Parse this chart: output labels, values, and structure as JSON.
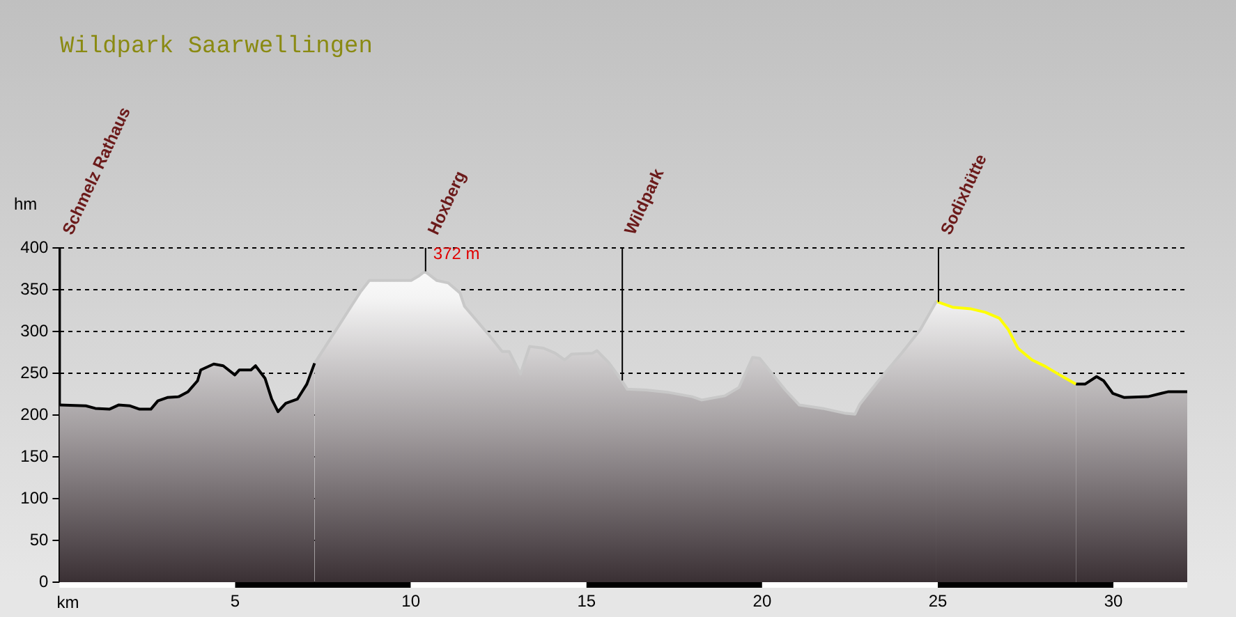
{
  "chart_data": {
    "type": "area",
    "title": "Wildpark Saarwellingen",
    "xlabel": "km",
    "ylabel": "hm",
    "xlim": [
      0,
      32.1
    ],
    "xticks": [
      5,
      10,
      15,
      20,
      25,
      30
    ],
    "ylim": [
      0,
      400
    ],
    "yticks": [
      0,
      50,
      100,
      150,
      200,
      250,
      300,
      350,
      400
    ],
    "grid": "y",
    "legend": false,
    "series": [
      {
        "color": "#000000",
        "x": [
          0,
          0.75,
          1.02,
          1.42,
          1.68,
          2.01,
          2.28,
          2.6,
          2.8,
          3.07,
          3.4,
          3.66,
          3.93,
          4.02,
          4.39,
          4.66,
          4.99,
          5.12,
          5.45,
          5.58,
          5.85,
          6.04,
          6.22,
          6.44,
          6.77,
          7.04,
          7.26
        ],
        "values": [
          212,
          211,
          208,
          207,
          212,
          211,
          207,
          207,
          217,
          221,
          222,
          228,
          241,
          254,
          261,
          259,
          248,
          254,
          254,
          259,
          244,
          219,
          204,
          214,
          219,
          237,
          262
        ]
      },
      {
        "color": "#c8c8c8",
        "x": [
          7.26,
          7.83,
          8.56,
          8.82,
          10.01,
          10.21,
          10.4,
          10.74,
          11.07,
          11.4,
          11.53,
          12.2,
          12.6,
          12.8,
          13.12,
          13.38,
          13.78,
          14.11,
          14.38,
          14.58,
          15.17,
          15.3,
          15.63,
          15.96,
          16.16,
          16.69,
          17.35,
          18.01,
          18.28,
          18.94,
          19.34,
          19.73,
          19.93,
          20.66,
          21.06,
          21.72,
          22.38,
          22.64,
          22.78,
          23.31,
          23.97,
          24.5,
          24.96
        ],
        "values": [
          262,
          299,
          347,
          361,
          361,
          366,
          372,
          361,
          358,
          346,
          330,
          297,
          276,
          276,
          249,
          282,
          280,
          274,
          266,
          273,
          274,
          277,
          263,
          244,
          231,
          230,
          227,
          222,
          218,
          223,
          233,
          269,
          268,
          230,
          212,
          208,
          202,
          201,
          213,
          241,
          274,
          302,
          336
        ]
      },
      {
        "color": "#ffff00",
        "x": [
          24.96,
          25.42,
          25.95,
          26.35,
          26.75,
          27.01,
          27.28,
          27.68,
          28.07,
          28.47,
          28.93
        ],
        "values": [
          336,
          329,
          327,
          323,
          316,
          302,
          280,
          266,
          258,
          248,
          237
        ]
      },
      {
        "color": "#000000",
        "x": [
          28.93,
          29.19,
          29.52,
          29.72,
          29.98,
          30.31,
          30.98,
          31.37,
          31.57,
          32.1
        ],
        "values": [
          237,
          237,
          246,
          241,
          226,
          221,
          222,
          226,
          228,
          228
        ]
      }
    ],
    "ref_lines": [
      {
        "axis": "x",
        "value": 0,
        "label": "Schmelz Rathaus",
        "color": "#000000"
      },
      {
        "axis": "x",
        "value": 10.4,
        "label": "Hoxberg",
        "color": "#000000"
      },
      {
        "axis": "x",
        "value": 16,
        "label": "Wildpark",
        "color": "#000000"
      },
      {
        "axis": "x",
        "value": 25,
        "label": "Sodixhütte",
        "color": "#000000"
      }
    ],
    "annotations": [
      {
        "text": "372 m",
        "x": 10.4,
        "y": 372
      }
    ]
  }
}
